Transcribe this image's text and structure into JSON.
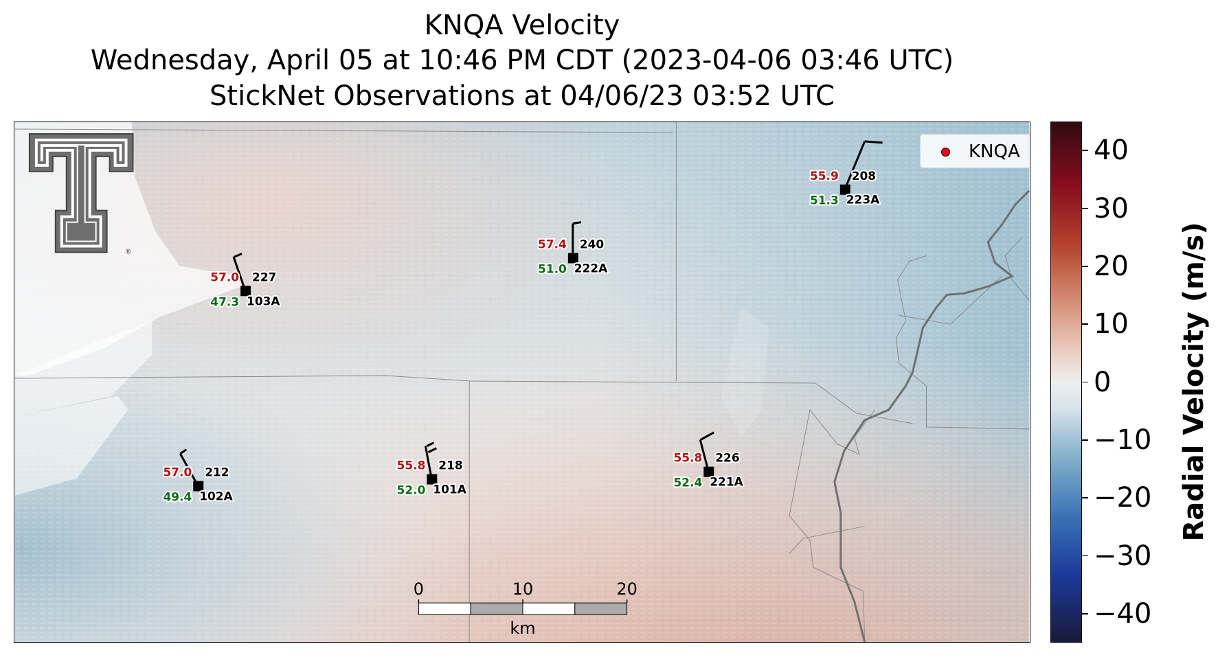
{
  "title": {
    "line1": "KNQA Velocity",
    "line2": "Wednesday, April 05 at 10:46 PM CDT (2023-04-06 03:46 UTC)",
    "line3": "StickNet Observations at 04/06/23 03:52 UTC"
  },
  "legend": {
    "label": "KNQA",
    "marker_color": "#e41010"
  },
  "logo": {
    "name": "Texas Tech Double T logo"
  },
  "stations": [
    {
      "id": "227",
      "code": "103A",
      "red_value": "57.0",
      "green_value": "47.3"
    },
    {
      "id": "240",
      "code": "222A",
      "red_value": "57.4",
      "green_value": "51.0"
    },
    {
      "id": "208",
      "code": "223A",
      "red_value": "55.9",
      "green_value": "51.3"
    },
    {
      "id": "212",
      "code": "102A",
      "red_value": "57.0",
      "green_value": "49.4"
    },
    {
      "id": "218",
      "code": "101A",
      "red_value": "55.8",
      "green_value": "52.0"
    },
    {
      "id": "226",
      "code": "221A",
      "red_value": "55.8",
      "green_value": "52.4"
    }
  ],
  "scalebar": {
    "ticks": [
      "0",
      "10",
      "20"
    ],
    "unit": "km"
  },
  "colorbar": {
    "label": "Radial Velocity (m/s)",
    "ticks": [
      "40",
      "30",
      "20",
      "10",
      "0",
      "−10",
      "−20",
      "−30",
      "−40"
    ],
    "range": [
      -45,
      45
    ]
  },
  "colors": {
    "positive_text": "#b41010",
    "negative_text": "#0b6b14",
    "outbound_tint": "#d9a595",
    "inbound_tint": "#9fc0d0"
  }
}
